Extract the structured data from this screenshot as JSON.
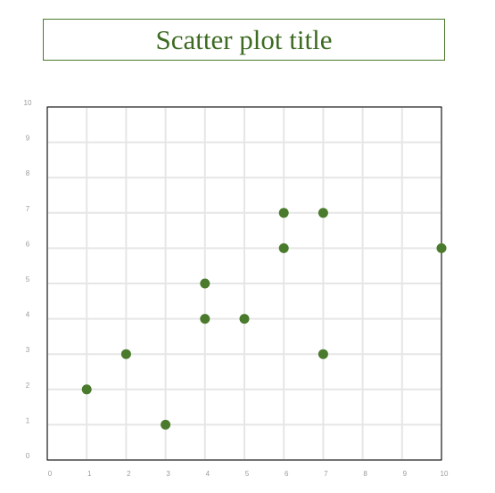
{
  "chart_data": {
    "type": "scatter",
    "title": "Scatter plot title",
    "xlabel": "",
    "ylabel": "",
    "xlim": [
      0,
      10
    ],
    "ylim": [
      0,
      10
    ],
    "xticks": [
      "0",
      "1",
      "2",
      "3",
      "4",
      "5",
      "6",
      "7",
      "8",
      "9",
      "10"
    ],
    "yticks": [
      "0",
      "1",
      "2",
      "3",
      "4",
      "5",
      "6",
      "7",
      "8",
      "9",
      "10"
    ],
    "grid": true,
    "legend": "none",
    "series": [
      {
        "color": "#4a7a2c",
        "points": [
          {
            "x": 1,
            "y": 2
          },
          {
            "x": 2,
            "y": 3
          },
          {
            "x": 3,
            "y": 1
          },
          {
            "x": 4,
            "y": 4
          },
          {
            "x": 4,
            "y": 5
          },
          {
            "x": 5,
            "y": 4
          },
          {
            "x": 6,
            "y": 6
          },
          {
            "x": 6,
            "y": 7
          },
          {
            "x": 7,
            "y": 7
          },
          {
            "x": 7,
            "y": 3
          },
          {
            "x": 10,
            "y": 6
          }
        ]
      }
    ]
  },
  "colors": {
    "accent": "#4a7a2c",
    "title": "#3d6b22",
    "grid": "#e6e6e6",
    "tick_label": "#9b9b9b",
    "axis_frame": "#000000"
  }
}
